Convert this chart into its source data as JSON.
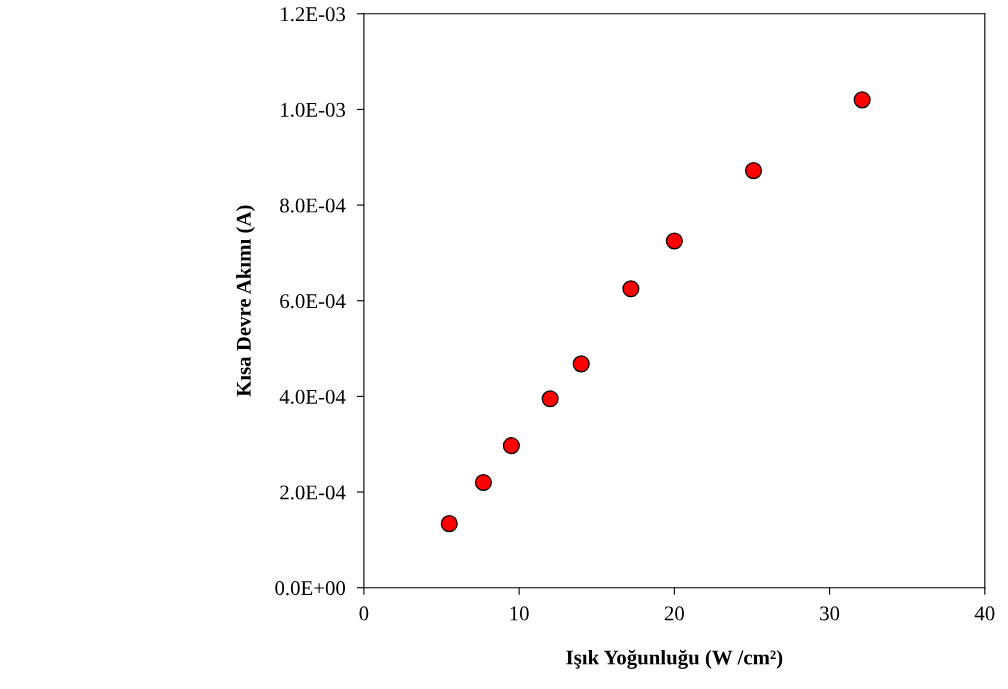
{
  "chart_data": {
    "type": "scatter",
    "xlabel": "Işık Yoğunluğu (W /cm²)",
    "ylabel": "Kısa Devre Akımı (A)",
    "x": [
      5.5,
      7.7,
      9.5,
      12.0,
      14.0,
      17.2,
      20.0,
      25.1,
      32.1
    ],
    "series": [
      {
        "color": "#ff0000",
        "values": [
          0.000134,
          0.00022,
          0.000297,
          0.000395,
          0.000468,
          0.000625,
          0.000725,
          0.000872,
          0.00102
        ]
      }
    ],
    "xlim": [
      0,
      40
    ],
    "xticks": [
      0,
      10,
      20,
      30,
      40
    ],
    "ylim": [
      0,
      0.0012
    ],
    "yticks": [
      {
        "value": 0,
        "label": "0.0E+00"
      },
      {
        "value": 0.0002,
        "label": "2.0E-04"
      },
      {
        "value": 0.0004,
        "label": "4.0E-04"
      },
      {
        "value": 0.0006,
        "label": "6.0E-04"
      },
      {
        "value": 0.0008,
        "label": "8.0E-04"
      },
      {
        "value": 0.001,
        "label": "1.0E-03"
      },
      {
        "value": 0.0012,
        "label": "1.2E-03"
      }
    ],
    "grid": false,
    "marker": "circle"
  }
}
